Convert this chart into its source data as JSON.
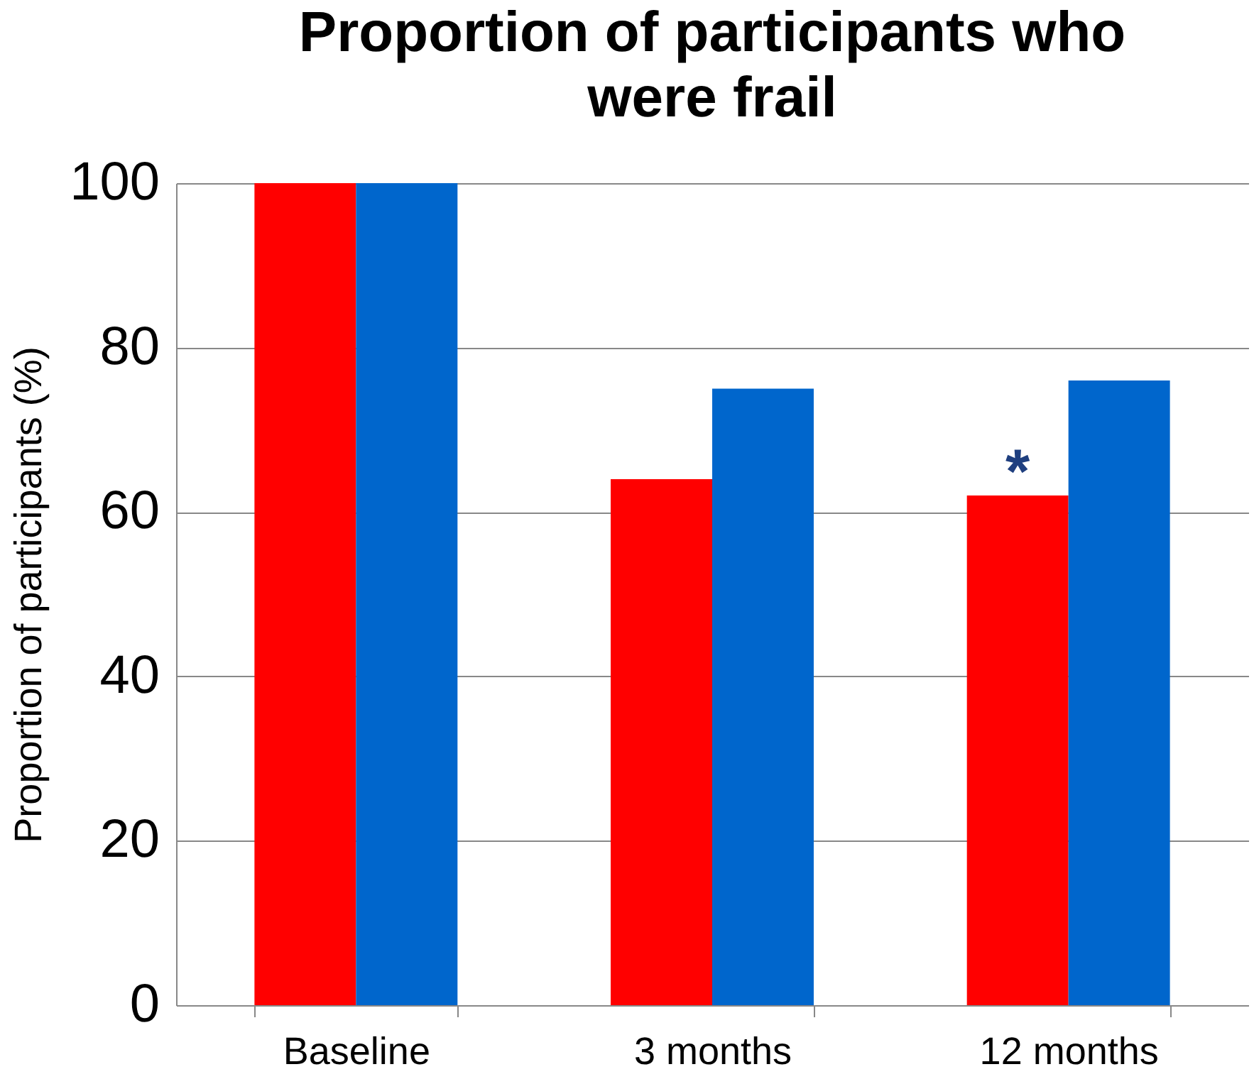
{
  "chart_data": {
    "type": "bar",
    "title": "Proportion of participants who were frail",
    "ylabel": "Proportion of participants  (%)",
    "categories": [
      "Baseline",
      "3 months",
      "12 months"
    ],
    "series": [
      {
        "color": "#ff0000",
        "values": [
          100,
          64,
          62
        ]
      },
      {
        "color": "#0066cc",
        "values": [
          100,
          75,
          76
        ]
      }
    ],
    "ylim": [
      0,
      100
    ],
    "yticks": [
      0,
      20,
      40,
      60,
      80,
      100
    ],
    "grid": "y",
    "annotations": [
      {
        "text": "*",
        "x": "12 months",
        "y": 62
      }
    ]
  }
}
